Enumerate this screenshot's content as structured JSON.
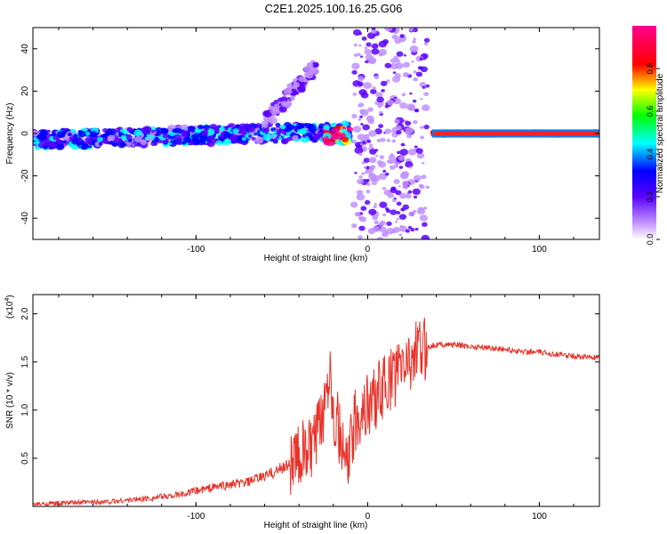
{
  "page_title": "C2E1.2025.100.16.25.G06",
  "chart_data": [
    {
      "type": "heatmap",
      "xlabel": "Height of straight line (km)",
      "ylabel": "Frequency (Hz)",
      "xlim": [
        -195,
        135
      ],
      "ylim": [
        -50,
        50
      ],
      "x_ticks": [
        -100,
        0,
        100
      ],
      "x_tick_labels": [
        "-100",
        "0",
        "100"
      ],
      "y_ticks": [
        -40,
        -20,
        0,
        20,
        40
      ],
      "y_tick_labels": [
        "-40",
        "-20",
        "0",
        "20",
        "40"
      ],
      "grid": false,
      "colorbar": {
        "label": "Normalized spectral amplitude",
        "range": [
          0,
          1
        ],
        "ticks": [
          0.0,
          0.2,
          0.4,
          0.6,
          0.8
        ],
        "tick_labels": [
          "0.0",
          "0.2",
          "0.4",
          "0.6",
          "0.8"
        ],
        "colors": [
          "#ffffff",
          "#9000ff",
          "#0000ff",
          "#00ffff",
          "#00ff00",
          "#ffff00",
          "#ff0000",
          "#ff0090"
        ]
      },
      "regions": [
        {
          "x_range": [
            -195,
            -10
          ],
          "center_freq_start": -3,
          "center_freq_end": 1,
          "amplitude": 0.35
        },
        {
          "x_range": [
            -60,
            -30
          ],
          "center_freq_start": 5,
          "center_freq_end": 32,
          "amplitude": 0.2
        },
        {
          "x_range": [
            -25,
            -10
          ],
          "center_freq_start": -1,
          "center_freq_end": -1,
          "amplitude": 0.9
        },
        {
          "x_range": [
            -8,
            35
          ],
          "center_freq_start": -50,
          "center_freq_end": 50,
          "amplitude": 0.15
        },
        {
          "x_range": [
            38,
            135
          ],
          "center_freq_start": 0,
          "center_freq_end": 0,
          "amplitude": 1.0
        }
      ]
    },
    {
      "type": "line",
      "xlabel": "Height of straight line (km)",
      "ylabel": "SNR (10 * v/v)",
      "y_multiplier_label": "(x10",
      "y_multiplier_exp": "4",
      "y_multiplier_close": ")",
      "xlim": [
        -195,
        135
      ],
      "ylim": [
        0,
        2.2
      ],
      "x_ticks": [
        -100,
        0,
        100
      ],
      "x_tick_labels": [
        "-100",
        "0",
        "100"
      ],
      "y_ticks": [
        0.5,
        1.0,
        1.5,
        2.0
      ],
      "y_tick_labels": [
        "0.5",
        "1.0",
        "1.5",
        "2.0"
      ],
      "grid": false,
      "color": "#e8332a",
      "series": [
        {
          "x": [
            -195,
            -170,
            -150,
            -130,
            -110,
            -90,
            -70,
            -55,
            -45,
            -38,
            -32,
            -28,
            -25,
            -22,
            -20,
            -18,
            -15,
            -12,
            -10,
            -7,
            -4,
            0,
            5,
            10,
            15,
            20,
            25,
            30,
            35,
            40,
            50,
            60,
            70,
            80,
            90,
            100,
            110,
            120,
            135
          ],
          "y": [
            0.02,
            0.04,
            0.05,
            0.08,
            0.12,
            0.2,
            0.25,
            0.35,
            0.45,
            0.55,
            0.6,
            0.8,
            1.1,
            1.5,
            1.0,
            0.9,
            0.6,
            0.4,
            0.6,
            0.9,
            1.0,
            1.05,
            1.15,
            1.25,
            1.35,
            1.45,
            1.55,
            1.6,
            1.66,
            1.68,
            1.68,
            1.66,
            1.65,
            1.63,
            1.61,
            1.6,
            1.58,
            1.56,
            1.54
          ]
        }
      ]
    }
  ]
}
